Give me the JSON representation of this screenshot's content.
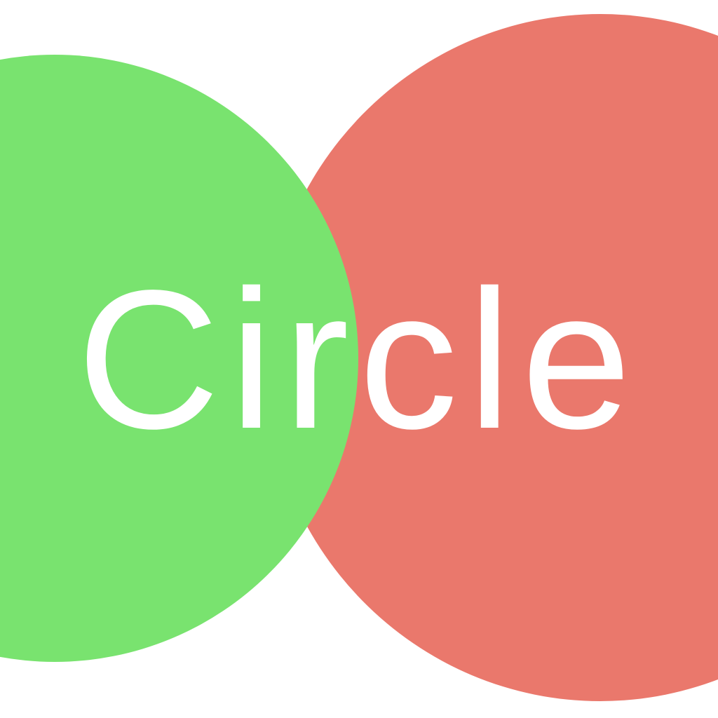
{
  "logo": {
    "text": "Circle",
    "colors": {
      "background": "#ffffff",
      "left_circle": "#79e36f",
      "right_circle": "#ea786c",
      "text": "#ffffff"
    }
  }
}
